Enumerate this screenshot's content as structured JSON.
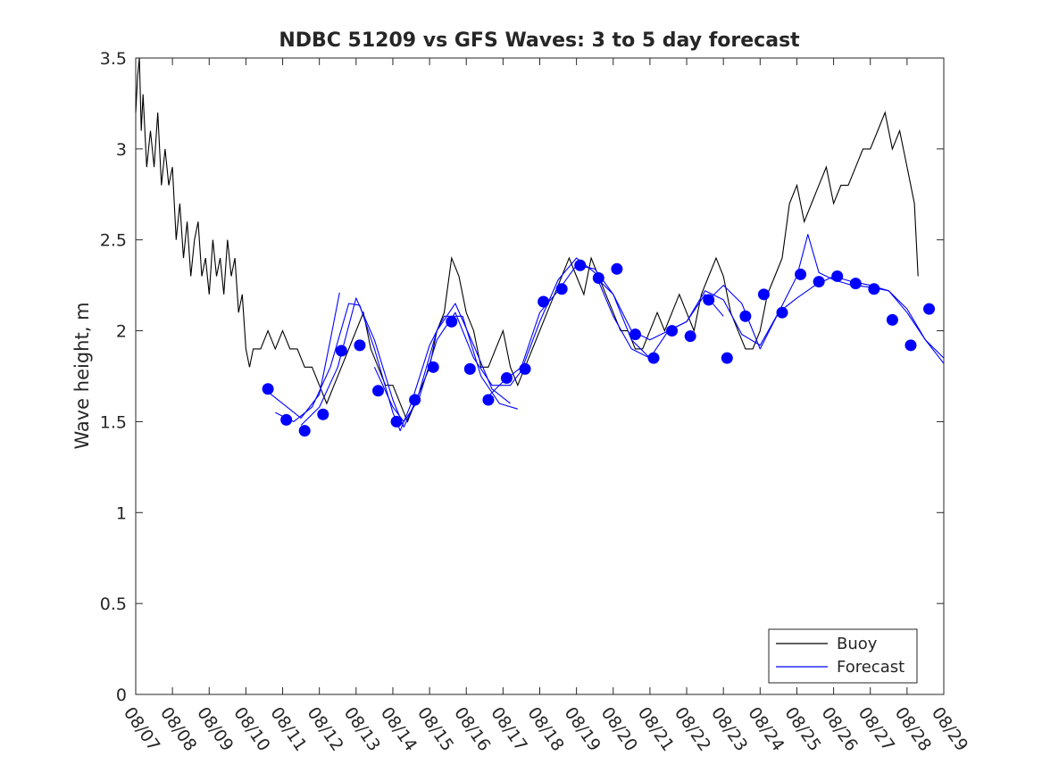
{
  "chart_data": {
    "type": "line",
    "title": "NDBC 51209 vs GFS Waves: 3 to 5 day forecast",
    "xlabel": "",
    "ylabel": "Wave height, m",
    "xlim": [
      0,
      22
    ],
    "ylim": [
      0,
      3.5
    ],
    "x_tick_values": [
      0,
      1,
      2,
      3,
      4,
      5,
      6,
      7,
      8,
      9,
      10,
      11,
      12,
      13,
      14,
      15,
      16,
      17,
      18,
      19,
      20,
      21,
      22
    ],
    "x_tick_labels": [
      "08/07",
      "08/08",
      "08/09",
      "08/10",
      "08/11",
      "08/12",
      "08/13",
      "08/14",
      "08/15",
      "08/16",
      "08/17",
      "08/18",
      "08/19",
      "08/20",
      "08/21",
      "08/22",
      "08/23",
      "08/24",
      "08/25",
      "08/26",
      "08/27",
      "08/28",
      "08/29"
    ],
    "y_ticks": [
      0,
      0.5,
      1,
      1.5,
      2,
      2.5,
      3,
      3.5
    ],
    "y_tick_labels": [
      "0",
      "0.5",
      "1",
      "1.5",
      "2",
      "2.5",
      "3",
      "3.5"
    ],
    "grid": false,
    "legend": {
      "position": "bottom-right",
      "entries": [
        {
          "label": "Buoy",
          "color": "#000000"
        },
        {
          "label": "Forecast",
          "color": "#0000ff"
        }
      ]
    },
    "series": [
      {
        "name": "Buoy",
        "color": "#000000",
        "x": [
          0.0,
          0.05,
          0.1,
          0.15,
          0.2,
          0.3,
          0.4,
          0.5,
          0.6,
          0.7,
          0.8,
          0.9,
          1.0,
          1.1,
          1.2,
          1.3,
          1.4,
          1.5,
          1.6,
          1.7,
          1.8,
          1.9,
          2.0,
          2.1,
          2.2,
          2.3,
          2.4,
          2.5,
          2.6,
          2.7,
          2.8,
          2.9,
          3.0,
          3.1,
          3.2,
          3.4,
          3.6,
          3.8,
          4.0,
          4.2,
          4.4,
          4.6,
          4.8,
          5.0,
          5.2,
          5.4,
          5.6,
          5.8,
          6.0,
          6.2,
          6.4,
          6.6,
          6.8,
          7.0,
          7.2,
          7.4,
          7.6,
          7.8,
          8.0,
          8.2,
          8.4,
          8.6,
          8.8,
          9.0,
          9.2,
          9.4,
          9.6,
          9.8,
          10.0,
          10.2,
          10.4,
          10.6,
          10.8,
          11.0,
          11.2,
          11.4,
          11.6,
          11.8,
          12.0,
          12.2,
          12.4,
          12.6,
          12.8,
          13.0,
          13.2,
          13.4,
          13.6,
          13.8,
          14.0,
          14.2,
          14.4,
          14.6,
          14.8,
          15.0,
          15.2,
          15.4,
          15.6,
          15.8,
          16.0,
          16.2,
          16.4,
          16.6,
          16.8,
          17.0,
          17.2,
          17.4,
          17.6,
          17.8,
          18.0,
          18.2,
          18.4,
          18.6,
          18.8,
          19.0,
          19.2,
          19.4,
          19.6,
          19.8,
          20.0,
          20.2,
          20.4,
          20.6,
          20.8,
          21.0,
          21.1,
          21.2,
          21.3
        ],
        "y": [
          3.2,
          3.4,
          3.5,
          3.1,
          3.3,
          2.9,
          3.1,
          2.9,
          3.2,
          2.8,
          3.0,
          2.8,
          2.9,
          2.5,
          2.7,
          2.4,
          2.6,
          2.3,
          2.5,
          2.6,
          2.3,
          2.4,
          2.2,
          2.5,
          2.3,
          2.4,
          2.2,
          2.5,
          2.3,
          2.4,
          2.1,
          2.2,
          1.9,
          1.8,
          1.9,
          1.9,
          2.0,
          1.9,
          2.0,
          1.9,
          1.9,
          1.8,
          1.8,
          1.7,
          1.6,
          1.7,
          1.8,
          1.9,
          2.0,
          2.1,
          1.9,
          1.8,
          1.7,
          1.7,
          1.6,
          1.5,
          1.6,
          1.7,
          1.8,
          2.0,
          2.1,
          2.4,
          2.3,
          2.1,
          2.0,
          1.8,
          1.8,
          1.9,
          2.0,
          1.8,
          1.7,
          1.8,
          1.9,
          2.0,
          2.1,
          2.2,
          2.3,
          2.4,
          2.3,
          2.2,
          2.4,
          2.3,
          2.2,
          2.1,
          2.0,
          2.0,
          1.9,
          1.9,
          2.0,
          2.1,
          2.0,
          2.1,
          2.2,
          2.1,
          2.0,
          2.2,
          2.3,
          2.4,
          2.3,
          2.1,
          2.0,
          1.9,
          1.9,
          2.0,
          2.2,
          2.3,
          2.4,
          2.7,
          2.8,
          2.6,
          2.7,
          2.8,
          2.9,
          2.7,
          2.8,
          2.8,
          2.9,
          3.0,
          3.0,
          3.1,
          3.2,
          3.0,
          3.1,
          2.9,
          2.8,
          2.7,
          2.3
        ]
      },
      {
        "name": "Forecast",
        "color": "#0000ff",
        "segments": [
          {
            "x": [
              3.5,
              4.0,
              4.5,
              5.0,
              5.3,
              5.55
            ],
            "y": [
              1.68,
              1.6,
              1.52,
              1.65,
              1.95,
              2.21
            ]
          },
          {
            "x": [
              3.8,
              4.3,
              4.8,
              5.3,
              5.8,
              6.1,
              6.5,
              7.0,
              7.2,
              7.5,
              8.0,
              8.4,
              8.9,
              9.4,
              9.9,
              10.4
            ],
            "y": [
              1.55,
              1.5,
              1.58,
              1.8,
              2.15,
              2.14,
              1.9,
              1.55,
              1.45,
              1.6,
              1.92,
              2.08,
              2.08,
              1.75,
              1.6,
              1.57
            ]
          },
          {
            "x": [
              4.5,
              5.0,
              5.5,
              6.0,
              6.5,
              7.0,
              7.3,
              7.7,
              8.2,
              8.7,
              9.2,
              9.7,
              10.2
            ],
            "y": [
              1.48,
              1.58,
              1.8,
              2.18,
              1.95,
              1.62,
              1.47,
              1.65,
              2.0,
              2.15,
              1.92,
              1.68,
              1.6
            ]
          },
          {
            "x": [
              6.5,
              7.0,
              7.3,
              7.7,
              8.2,
              8.7,
              9.2,
              9.7,
              10.2,
              10.5,
              11.0,
              11.5,
              12.0,
              12.5,
              13.0,
              13.5,
              14.0
            ],
            "y": [
              1.8,
              1.58,
              1.5,
              1.62,
              1.95,
              2.1,
              1.85,
              1.7,
              1.7,
              1.78,
              2.05,
              2.28,
              2.4,
              2.32,
              2.08,
              1.9,
              1.85
            ]
          },
          {
            "x": [
              9.5,
              10.0,
              10.5,
              11.0,
              11.5,
              12.0,
              12.5,
              13.0,
              13.5,
              14.0,
              14.5,
              15.0,
              15.5,
              16.0
            ],
            "y": [
              1.62,
              1.72,
              1.8,
              2.1,
              2.22,
              2.36,
              2.34,
              2.2,
              1.95,
              1.85,
              2.0,
              2.05,
              2.2,
              2.08
            ]
          },
          {
            "x": [
              12.5,
              13.0,
              13.5,
              14.0,
              14.5,
              15.0,
              15.5,
              16.0,
              16.5,
              17.0,
              17.5,
              18.0,
              18.5,
              19.0,
              19.5,
              20.0,
              20.5,
              21.0,
              21.5,
              22.0
            ],
            "y": [
              2.3,
              2.2,
              2.0,
              1.95,
              2.0,
              2.05,
              2.22,
              2.17,
              1.98,
              1.92,
              2.1,
              2.18,
              2.25,
              2.3,
              2.27,
              2.25,
              2.22,
              2.12,
              1.95,
              1.85
            ]
          },
          {
            "x": [
              15.5,
              16.0,
              16.5,
              17.0,
              17.5,
              18.0,
              18.3,
              18.6,
              19.0,
              19.5,
              20.0,
              20.5,
              21.0,
              21.5,
              22.0
            ],
            "y": [
              2.15,
              2.25,
              2.15,
              1.9,
              2.1,
              2.3,
              2.53,
              2.32,
              2.28,
              2.25,
              2.24,
              2.22,
              2.1,
              1.95,
              1.82
            ]
          }
        ],
        "markers": {
          "x": [
            3.6,
            4.1,
            4.6,
            5.1,
            5.6,
            6.1,
            6.6,
            7.1,
            7.6,
            8.1,
            8.6,
            9.1,
            9.6,
            10.1,
            10.6,
            11.1,
            11.6,
            12.1,
            12.6,
            13.1,
            13.6,
            14.1,
            14.6,
            15.1,
            15.6,
            16.1,
            16.6,
            17.1,
            17.6,
            18.1,
            18.6,
            19.1,
            19.6,
            20.1,
            20.6,
            21.1,
            21.6
          ],
          "y": [
            1.68,
            1.51,
            1.45,
            1.54,
            1.89,
            1.92,
            1.67,
            1.5,
            1.62,
            1.8,
            2.05,
            1.79,
            1.62,
            1.74,
            1.79,
            2.16,
            2.23,
            2.36,
            2.29,
            2.34,
            1.98,
            1.85,
            2.0,
            1.97,
            2.17,
            1.85,
            2.08,
            2.2,
            2.1,
            2.31,
            2.27,
            2.3,
            2.26,
            2.23,
            2.06,
            1.92,
            2.12
          ]
        }
      }
    ]
  }
}
